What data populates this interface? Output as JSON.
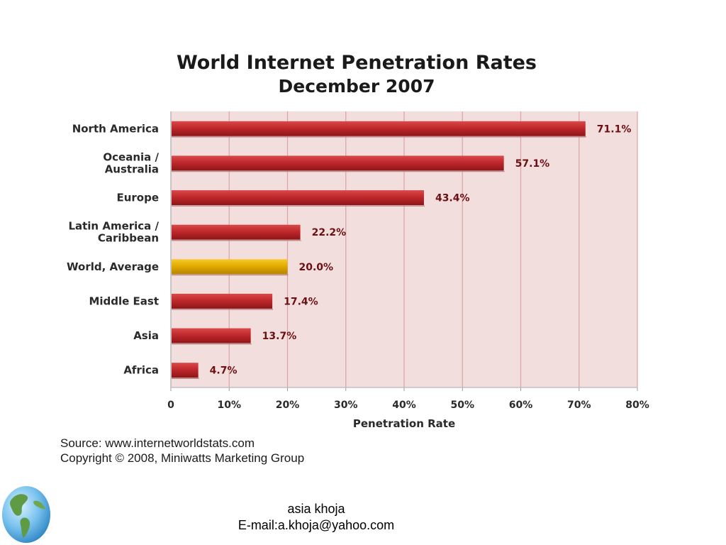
{
  "chart_data": {
    "type": "bar",
    "orientation": "horizontal",
    "title": "World Internet Penetration Rates",
    "subtitle": "December 2007",
    "xlabel": "Penetration Rate",
    "ylabel": "",
    "xlim": [
      0,
      80
    ],
    "x_ticks": [
      "0",
      "10%",
      "20%",
      "30%",
      "40%",
      "50%",
      "60%",
      "70%",
      "80%"
    ],
    "grid": "vertical",
    "categories": [
      [
        "North America"
      ],
      [
        "Oceania  /",
        "Australia"
      ],
      [
        "Europe"
      ],
      [
        "Latin America /",
        "Caribbean"
      ],
      [
        "World, Average"
      ],
      [
        "Middle East"
      ],
      [
        "Asia"
      ],
      [
        "Africa"
      ]
    ],
    "values": [
      71.1,
      57.1,
      43.4,
      22.2,
      20.0,
      17.4,
      13.7,
      4.7
    ],
    "value_labels": [
      "71.1%",
      "57.1%",
      "43.4%",
      "22.2%",
      "20.0%",
      "17.4%",
      "13.7%",
      "4.7%"
    ],
    "highlight_index": 4,
    "colors": {
      "bar": "#c0282c",
      "highlight_bar": "#e2ac00",
      "plot_background": "#f3dede",
      "grid": "#dba3a3",
      "value_text": "#6b0f12"
    }
  },
  "source": {
    "line1": "Source: www.internetworldstats.com",
    "line2": "Copyright © 2008, Miniwatts Marketing Group"
  },
  "footer": {
    "name": "asia khoja",
    "email": "E-mail:a.khoja@yahoo.com"
  },
  "icons": {
    "globe": "globe-icon"
  }
}
